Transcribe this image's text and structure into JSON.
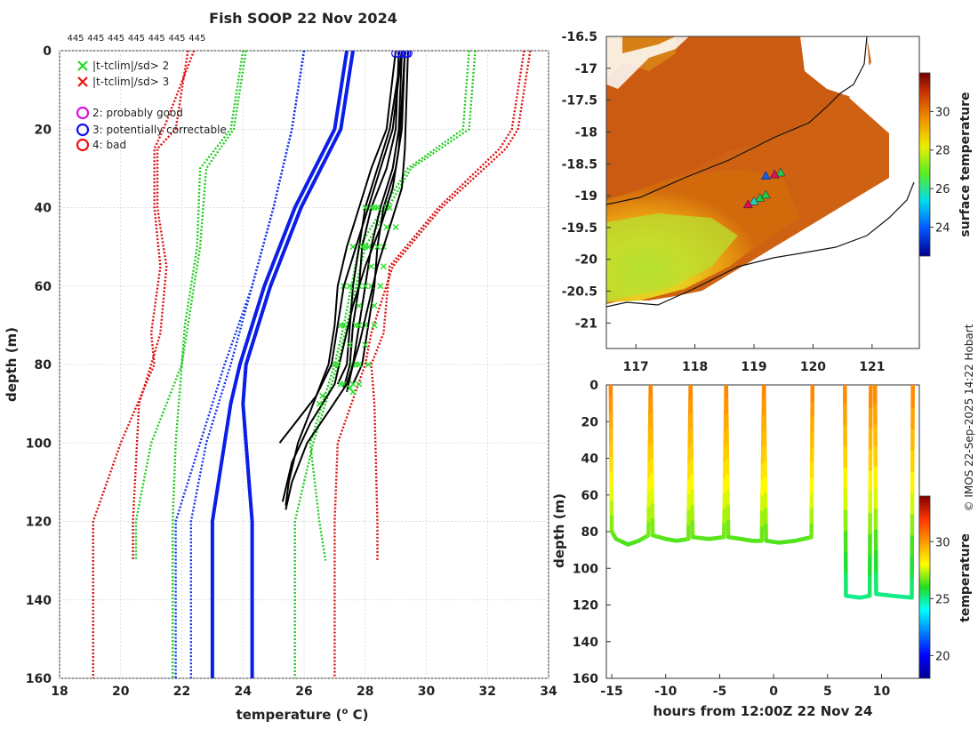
{
  "title": "Fish SOOP 22 Nov 2024",
  "credit": "© IMOS 22-Sep-2025 14:22 Hobart",
  "chart_data": [
    {
      "type": "line",
      "name": "depth-temperature profiles",
      "xlabel": "temperature (",
      "xlabel_unit": "o",
      "xlabel_tail": " C)",
      "ylabel": "depth (m)",
      "xlim": [
        18,
        34
      ],
      "ylim": [
        160,
        0
      ],
      "xticks": [
        18,
        20,
        22,
        24,
        26,
        28,
        30,
        32,
        34
      ],
      "yticks": [
        0,
        20,
        40,
        60,
        80,
        100,
        120,
        140,
        160
      ],
      "grid": true,
      "top_labels": [
        "445",
        "445",
        "445",
        "445",
        "445",
        "445",
        "445"
      ],
      "legend": [
        {
          "marker": "x",
          "color": "#22dd22",
          "label": "|t-tclim|/sd> 2"
        },
        {
          "marker": "x",
          "color": "#ee1111",
          "label": "|t-tclim|/sd> 3"
        },
        {
          "marker": "o",
          "color": "#dd11dd",
          "label": "2: probably good"
        },
        {
          "marker": "o",
          "color": "#1111ee",
          "label": "3: potentially correctable"
        },
        {
          "marker": "o",
          "color": "#ee1111",
          "label": "4: bad"
        }
      ],
      "envelopes": [
        {
          "name": "climatology +/-3sd outer",
          "color": "#dd1111",
          "style": "dotted",
          "depth": [
            0,
            20,
            25,
            40,
            55,
            72,
            80,
            100,
            120,
            160
          ],
          "left": [
            22.4,
            21.4,
            21.1,
            21.1,
            21.3,
            21.0,
            21.1,
            20.0,
            19.1,
            19.1
          ],
          "right": [
            33.4,
            33.0,
            32.6,
            30.5,
            28.9,
            28.2,
            28.0,
            27.1,
            27.0,
            27.0
          ]
        },
        {
          "name": "climatology +/-3sd inner",
          "color": "#dd1111",
          "style": "dotted",
          "depth": [
            0,
            20,
            25,
            40,
            55,
            72,
            80,
            90,
            120,
            130
          ],
          "left": [
            22.2,
            21.8,
            21.2,
            21.2,
            21.5,
            21.3,
            21.0,
            20.6,
            20.4,
            20.4
          ],
          "right": [
            33.2,
            32.8,
            32.4,
            30.4,
            28.8,
            28.6,
            28.2,
            28.3,
            28.4,
            28.4
          ]
        },
        {
          "name": "climatology +/-2sd outer",
          "color": "#22cc22",
          "style": "dotted",
          "depth": [
            0,
            20,
            30,
            50,
            70,
            80,
            100,
            120,
            160
          ],
          "left": [
            24.1,
            23.7,
            22.8,
            22.6,
            22.2,
            22.0,
            21.8,
            21.7,
            21.7
          ],
          "right": [
            31.6,
            31.4,
            29.5,
            28.0,
            27.4,
            27.1,
            26.3,
            25.7,
            25.7
          ]
        },
        {
          "name": "climatology +/-2sd inner",
          "color": "#22cc22",
          "style": "dotted",
          "depth": [
            0,
            20,
            30,
            50,
            70,
            80,
            100,
            120,
            130
          ],
          "left": [
            24.0,
            23.6,
            22.6,
            22.5,
            22.1,
            22.0,
            21.0,
            20.5,
            20.5
          ],
          "right": [
            31.4,
            31.2,
            29.4,
            27.8,
            27.3,
            27.0,
            26.2,
            26.5,
            26.7
          ]
        },
        {
          "name": "climatology mean",
          "color": "#1133ee",
          "style": "dotted",
          "depth": [
            0,
            20,
            40,
            60,
            80,
            90,
            100,
            120,
            160
          ],
          "left": [
            26.0,
            25.6,
            25.0,
            24.3,
            23.4,
            23.0,
            22.6,
            21.8,
            21.8
          ],
          "right": [
            26.0,
            25.6,
            25.0,
            24.3,
            23.6,
            23.2,
            22.8,
            22.3,
            22.3
          ]
        }
      ],
      "mean_profiles": [
        {
          "color": "#0a1ee8",
          "depth": [
            0,
            20,
            40,
            60,
            80,
            90,
            110,
            120,
            160
          ],
          "temp": [
            27.6,
            27.2,
            25.9,
            24.9,
            24.1,
            24.0,
            24.2,
            24.3,
            24.3
          ]
        },
        {
          "color": "#0a1ee8",
          "depth": [
            0,
            20,
            40,
            60,
            80,
            90,
            110,
            120,
            160
          ],
          "temp": [
            27.4,
            27.0,
            25.7,
            24.7,
            23.9,
            23.6,
            23.2,
            23.0,
            23.0
          ]
        }
      ],
      "profiles": [
        {
          "depth": [
            0,
            20,
            30,
            40,
            50,
            60,
            70,
            80,
            85
          ],
          "temp": [
            29.3,
            29.2,
            29.0,
            28.6,
            28.4,
            28.3,
            28.1,
            27.9,
            27.6
          ]
        },
        {
          "depth": [
            0,
            20,
            30,
            40,
            50,
            60,
            70,
            80,
            87
          ],
          "temp": [
            29.2,
            29.1,
            28.9,
            28.5,
            28.2,
            28.0,
            27.8,
            27.6,
            27.4
          ]
        },
        {
          "depth": [
            0,
            20,
            30,
            40,
            50,
            60,
            70,
            80,
            86
          ],
          "temp": [
            29.1,
            29.0,
            28.7,
            28.2,
            27.9,
            27.8,
            27.6,
            27.5,
            27.3
          ]
        },
        {
          "depth": [
            0,
            20,
            30,
            40,
            50,
            60,
            70,
            80,
            85
          ],
          "temp": [
            29.2,
            28.8,
            28.4,
            28.0,
            27.8,
            27.6,
            27.5,
            27.4,
            27.1
          ]
        },
        {
          "depth": [
            0,
            25,
            35,
            45,
            55,
            65,
            75,
            85,
            92,
            100,
            110,
            117
          ],
          "temp": [
            29.4,
            29.3,
            29.2,
            28.8,
            28.4,
            28.1,
            27.8,
            27.4,
            26.8,
            26.1,
            25.6,
            25.4
          ]
        },
        {
          "depth": [
            0,
            25,
            35,
            45,
            55,
            65,
            75,
            85,
            95,
            105,
            115
          ],
          "temp": [
            29.3,
            29.1,
            28.9,
            28.5,
            28.0,
            27.6,
            27.3,
            27.0,
            26.2,
            25.6,
            25.3
          ]
        },
        {
          "depth": [
            0,
            20,
            30,
            40,
            50,
            60,
            70,
            80,
            90,
            100,
            110,
            116
          ],
          "temp": [
            29.0,
            28.7,
            28.2,
            27.8,
            27.4,
            27.1,
            27.0,
            26.8,
            26.3,
            25.8,
            25.5,
            25.4
          ]
        },
        {
          "depth": [
            0,
            20,
            30,
            40,
            50,
            60,
            70,
            80,
            88,
            96,
            100
          ],
          "temp": [
            29.2,
            28.9,
            28.5,
            28.1,
            27.7,
            27.3,
            27.1,
            26.9,
            26.4,
            25.6,
            25.2
          ]
        }
      ]
    },
    {
      "type": "heatmap",
      "name": "surface temperature map",
      "xlim": [
        116.5,
        121.8
      ],
      "ylim": [
        -21.4,
        -16.5
      ],
      "xticks": [
        117,
        118,
        119,
        120,
        121
      ],
      "yticks": [
        -16.5,
        -17,
        -17.5,
        -18,
        -18.5,
        -19,
        -19.5,
        -20,
        -20.5,
        -21
      ],
      "colorbar_label": "surface temperature",
      "colorbar_ticks": [
        24,
        26,
        28,
        30
      ],
      "colorbar_range": [
        22.5,
        32
      ],
      "track_points": [
        [
          119.45,
          -18.65
        ],
        [
          119.35,
          -18.68
        ],
        [
          119.2,
          -18.7
        ],
        [
          119.1,
          -19.05
        ],
        [
          119.0,
          -19.1
        ],
        [
          118.9,
          -19.15
        ],
        [
          119.2,
          -19.0
        ]
      ]
    },
    {
      "type": "scatter",
      "name": "depth vs time",
      "xlabel": "hours from 12:00Z 22 Nov 24",
      "ylabel": "depth (m)",
      "xlim": [
        -15.5,
        13.5
      ],
      "ylim": [
        160,
        0
      ],
      "xticks": [
        -15,
        -10,
        -5,
        0,
        5,
        10
      ],
      "yticks": [
        0,
        20,
        40,
        60,
        80,
        100,
        120,
        140,
        160
      ],
      "colorbar_label": "temperature",
      "colorbar_ticks": [
        20,
        25,
        30
      ],
      "colorbar_range": [
        18,
        34
      ],
      "segments": [
        {
          "t": [
            -15.1,
            -15.0,
            -14.6,
            -13.5,
            -12.5,
            -11.6,
            -11.4
          ],
          "d": [
            0,
            80,
            84,
            87,
            85,
            82,
            0
          ]
        },
        {
          "t": [
            -11.4,
            -11.2,
            -10.0,
            -9.0,
            -7.9,
            -7.7
          ],
          "d": [
            0,
            82,
            84,
            85,
            84,
            0
          ]
        },
        {
          "t": [
            -7.7,
            -7.5,
            -6.0,
            -4.6,
            -4.4
          ],
          "d": [
            0,
            83,
            84,
            83,
            0
          ]
        },
        {
          "t": [
            -4.4,
            -4.2,
            -3.0,
            -2.0,
            -1.1,
            -0.9
          ],
          "d": [
            0,
            83,
            84,
            85,
            85,
            0
          ]
        },
        {
          "t": [
            -0.9,
            -0.7,
            0.5,
            2.0,
            3.5,
            3.6
          ],
          "d": [
            0,
            85,
            86,
            85,
            83,
            0
          ]
        },
        {
          "t": [
            6.6,
            6.7,
            8.0,
            8.9,
            9.0
          ],
          "d": [
            0,
            115,
            116,
            115,
            0
          ]
        },
        {
          "t": [
            9.4,
            9.5,
            11.0,
            12.8,
            12.9
          ],
          "d": [
            0,
            114,
            115,
            116,
            0
          ]
        }
      ]
    }
  ]
}
